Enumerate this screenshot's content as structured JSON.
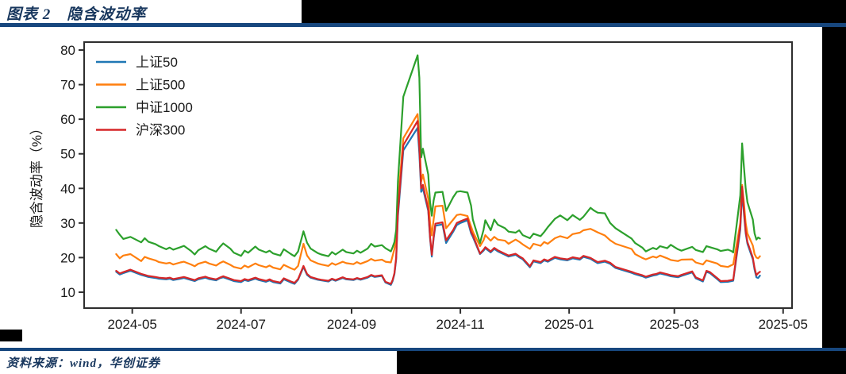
{
  "page": {
    "title": "图表 2　隐含波动率",
    "source_note": "资料来源：wind，华创证券",
    "accent_color": "#17365d",
    "rule_color": "#17477e"
  },
  "chart_data": {
    "type": "line",
    "title": "隐含波动率",
    "xlabel": "",
    "ylabel": "隐含波动率（%）",
    "ylim": [
      5.4,
      82.3
    ],
    "xlim": [
      "2024-04-04",
      "2025-05-06"
    ],
    "y_ticks": [
      10,
      20,
      30,
      40,
      50,
      60,
      70,
      80
    ],
    "x_ticks": [
      {
        "date": "2024-05-01",
        "label": "2024-05"
      },
      {
        "date": "2024-07-01",
        "label": "2024-07"
      },
      {
        "date": "2024-09-01",
        "label": "2024-09"
      },
      {
        "date": "2024-11-01",
        "label": "2024-11"
      },
      {
        "date": "2025-01-01",
        "label": "2025-01"
      },
      {
        "date": "2025-03-01",
        "label": "2025-03"
      },
      {
        "date": "2025-05-01",
        "label": "2025-05"
      }
    ],
    "grid": false,
    "legend_position": "upper left",
    "dates": [
      "2024-04-22",
      "2024-04-24",
      "2024-04-26",
      "2024-04-30",
      "2024-05-06",
      "2024-05-08",
      "2024-05-10",
      "2024-05-14",
      "2024-05-16",
      "2024-05-20",
      "2024-05-22",
      "2024-05-24",
      "2024-05-28",
      "2024-05-30",
      "2024-06-03",
      "2024-06-05",
      "2024-06-07",
      "2024-06-11",
      "2024-06-13",
      "2024-06-17",
      "2024-06-19",
      "2024-06-21",
      "2024-06-25",
      "2024-06-27",
      "2024-07-01",
      "2024-07-03",
      "2024-07-05",
      "2024-07-09",
      "2024-07-11",
      "2024-07-15",
      "2024-07-17",
      "2024-07-19",
      "2024-07-23",
      "2024-07-25",
      "2024-07-29",
      "2024-07-31",
      "2024-08-02",
      "2024-08-05",
      "2024-08-07",
      "2024-08-09",
      "2024-08-13",
      "2024-08-15",
      "2024-08-19",
      "2024-08-21",
      "2024-08-23",
      "2024-08-27",
      "2024-08-29",
      "2024-09-02",
      "2024-09-04",
      "2024-09-06",
      "2024-09-10",
      "2024-09-12",
      "2024-09-14",
      "2024-09-18",
      "2024-09-20",
      "2024-09-23",
      "2024-09-24",
      "2024-09-25",
      "2024-09-26",
      "2024-09-27",
      "2024-09-30",
      "2024-10-08",
      "2024-10-09",
      "2024-10-10",
      "2024-10-11",
      "2024-10-14",
      "2024-10-15",
      "2024-10-16",
      "2024-10-17",
      "2024-10-18",
      "2024-10-22",
      "2024-10-24",
      "2024-10-28",
      "2024-10-30",
      "2024-11-01",
      "2024-11-05",
      "2024-11-07",
      "2024-11-08",
      "2024-11-12",
      "2024-11-14",
      "2024-11-15",
      "2024-11-18",
      "2024-11-20",
      "2024-11-22",
      "2024-11-26",
      "2024-11-28",
      "2024-12-02",
      "2024-12-04",
      "2024-12-06",
      "2024-12-10",
      "2024-12-12",
      "2024-12-16",
      "2024-12-18",
      "2024-12-20",
      "2024-12-24",
      "2024-12-27",
      "2024-12-31",
      "2025-01-03",
      "2025-01-07",
      "2025-01-09",
      "2025-01-13",
      "2025-01-15",
      "2025-01-17",
      "2025-01-21",
      "2025-01-24",
      "2025-01-27",
      "2025-02-05",
      "2025-02-07",
      "2025-02-11",
      "2025-02-13",
      "2025-02-17",
      "2025-02-19",
      "2025-02-21",
      "2025-02-25",
      "2025-02-27",
      "2025-03-03",
      "2025-03-05",
      "2025-03-11",
      "2025-03-13",
      "2025-03-17",
      "2025-03-19",
      "2025-03-21",
      "2025-03-25",
      "2025-03-27",
      "2025-03-31",
      "2025-04-02",
      "2025-04-03",
      "2025-04-07",
      "2025-04-08",
      "2025-04-09",
      "2025-04-10",
      "2025-04-11",
      "2025-04-14",
      "2025-04-15",
      "2025-04-16",
      "2025-04-17",
      "2025-04-18"
    ],
    "series": [
      {
        "name": "上证50",
        "color": "#1f77b4",
        "values": [
          15.9,
          15.1,
          15.5,
          16.2,
          15.0,
          14.7,
          14.4,
          14.1,
          13.9,
          13.7,
          13.9,
          13.5,
          13.9,
          14.1,
          13.5,
          13.2,
          13.7,
          14.2,
          13.8,
          13.4,
          14.0,
          14.3,
          13.6,
          13.2,
          12.9,
          13.5,
          13.2,
          13.9,
          13.5,
          13.0,
          13.4,
          12.9,
          12.5,
          13.7,
          12.8,
          12.4,
          13.6,
          17.3,
          15.0,
          14.2,
          13.6,
          13.4,
          13.1,
          13.7,
          13.3,
          14.1,
          13.7,
          13.5,
          13.9,
          13.6,
          14.2,
          14.8,
          14.4,
          14.7,
          12.8,
          12.1,
          13.2,
          15.2,
          19.5,
          32.0,
          51.0,
          57.5,
          50.0,
          39.0,
          40.0,
          33.5,
          25.5,
          20.3,
          25.5,
          29.2,
          29.6,
          24.2,
          27.5,
          29.4,
          30.0,
          30.8,
          27.0,
          26.0,
          21.0,
          22.0,
          22.7,
          21.5,
          22.5,
          21.8,
          20.8,
          20.3,
          20.8,
          20.1,
          19.5,
          17.2,
          18.9,
          18.4,
          19.2,
          18.8,
          19.9,
          19.5,
          19.2,
          19.8,
          19.4,
          20.2,
          19.6,
          19.0,
          18.4,
          18.8,
          18.2,
          17.0,
          15.6,
          15.2,
          14.6,
          14.2,
          14.8,
          15.0,
          15.4,
          14.9,
          14.6,
          14.3,
          14.7,
          15.7,
          14.0,
          13.1,
          15.9,
          15.5,
          13.8,
          12.9,
          13.0,
          13.2,
          13.3,
          28.0,
          39.0,
          33.0,
          27.0,
          24.0,
          19.5,
          16.5,
          14.3,
          14.1,
          14.8
        ]
      },
      {
        "name": "上证500",
        "color": "#ff7f0e",
        "values": [
          21.0,
          19.8,
          20.6,
          21.0,
          19.0,
          20.2,
          19.8,
          19.2,
          18.7,
          18.3,
          18.5,
          18.0,
          18.6,
          18.8,
          18.0,
          17.5,
          18.2,
          18.8,
          18.3,
          17.7,
          18.4,
          18.9,
          17.9,
          17.3,
          16.8,
          17.7,
          17.2,
          18.3,
          17.8,
          17.2,
          17.7,
          17.1,
          16.6,
          17.9,
          16.9,
          16.5,
          17.6,
          24.0,
          20.6,
          19.2,
          18.3,
          18.0,
          17.6,
          18.4,
          17.9,
          18.8,
          18.4,
          18.1,
          18.7,
          18.2,
          19.0,
          19.6,
          19.1,
          19.4,
          18.8,
          18.6,
          20.5,
          22.5,
          26.0,
          36.0,
          54.5,
          61.5,
          55.0,
          42.0,
          44.0,
          37.0,
          30.0,
          26.4,
          31.0,
          34.8,
          35.0,
          28.5,
          31.0,
          32.3,
          32.5,
          32.0,
          29.0,
          27.5,
          23.3,
          25.0,
          26.5,
          24.9,
          26.0,
          25.2,
          24.9,
          24.0,
          25.2,
          24.6,
          23.8,
          22.5,
          24.0,
          23.4,
          24.5,
          24.0,
          25.6,
          26.2,
          25.6,
          26.8,
          27.2,
          27.9,
          28.3,
          27.8,
          27.3,
          26.4,
          25.0,
          24.0,
          22.5,
          21.0,
          19.9,
          19.5,
          20.3,
          20.0,
          20.6,
          19.8,
          19.3,
          19.0,
          19.4,
          19.5,
          18.6,
          18.0,
          19.2,
          18.9,
          18.3,
          17.6,
          17.3,
          17.8,
          18.0,
          30.0,
          41.0,
          36.0,
          30.0,
          27.0,
          23.5,
          21.0,
          20.0,
          19.8,
          20.4
        ]
      },
      {
        "name": "中证1000",
        "color": "#2ca02c",
        "values": [
          28.0,
          26.6,
          25.4,
          26.0,
          24.4,
          25.6,
          24.6,
          23.9,
          23.3,
          22.4,
          22.9,
          22.3,
          23.0,
          23.4,
          21.9,
          20.9,
          22.1,
          23.3,
          22.6,
          21.7,
          23.0,
          24.1,
          22.6,
          21.4,
          20.5,
          22.0,
          21.4,
          23.2,
          22.3,
          21.5,
          22.0,
          21.2,
          20.6,
          22.4,
          21.0,
          20.4,
          21.8,
          27.6,
          24.3,
          22.6,
          21.3,
          20.9,
          20.4,
          21.6,
          20.9,
          22.3,
          21.6,
          21.2,
          22.0,
          21.4,
          22.6,
          24.0,
          23.2,
          23.6,
          22.7,
          21.8,
          23.0,
          24.5,
          28.0,
          42.0,
          66.5,
          78.5,
          72.0,
          49.0,
          51.5,
          44.0,
          36.0,
          32.1,
          36.5,
          38.8,
          39.0,
          33.5,
          37.5,
          39.0,
          39.2,
          38.8,
          35.0,
          31.0,
          24.2,
          28.0,
          30.8,
          27.9,
          31.0,
          29.5,
          28.5,
          27.5,
          27.2,
          27.9,
          26.5,
          25.6,
          26.9,
          26.2,
          27.4,
          28.8,
          31.2,
          32.2,
          30.8,
          32.3,
          30.9,
          31.8,
          34.4,
          33.6,
          33.0,
          32.8,
          30.0,
          28.5,
          25.5,
          24.2,
          22.9,
          21.8,
          22.8,
          22.4,
          23.3,
          22.7,
          23.7,
          22.4,
          22.0,
          23.1,
          22.2,
          21.6,
          23.3,
          23.0,
          22.4,
          21.9,
          22.3,
          21.9,
          21.5,
          38.0,
          53.0,
          46.5,
          40.0,
          36.0,
          31.0,
          27.0,
          25.2,
          25.8,
          25.5
        ]
      },
      {
        "name": "沪深300",
        "color": "#d62728",
        "values": [
          16.2,
          15.4,
          15.8,
          16.5,
          15.3,
          15.0,
          14.7,
          14.4,
          14.2,
          14.0,
          14.2,
          13.8,
          14.2,
          14.4,
          13.8,
          13.5,
          14.0,
          14.5,
          14.1,
          13.7,
          14.2,
          14.6,
          13.9,
          13.5,
          13.2,
          13.8,
          13.5,
          14.2,
          13.8,
          13.3,
          13.7,
          13.2,
          12.8,
          14.0,
          13.1,
          12.7,
          13.8,
          17.6,
          15.3,
          14.4,
          13.8,
          13.6,
          13.3,
          13.9,
          13.5,
          14.3,
          13.9,
          13.7,
          14.1,
          13.8,
          14.4,
          15.0,
          14.6,
          14.9,
          13.0,
          12.4,
          13.5,
          15.5,
          20.0,
          33.0,
          52.5,
          59.5,
          52.0,
          40.0,
          41.0,
          34.0,
          26.0,
          20.8,
          26.0,
          29.8,
          30.2,
          25.0,
          28.0,
          30.0,
          30.5,
          31.3,
          27.5,
          26.5,
          21.2,
          22.3,
          23.0,
          21.8,
          22.8,
          22.1,
          21.1,
          20.6,
          21.1,
          20.4,
          19.8,
          17.5,
          19.2,
          18.7,
          19.5,
          19.1,
          20.2,
          19.8,
          19.5,
          20.1,
          19.7,
          20.5,
          19.9,
          19.3,
          18.7,
          19.1,
          18.5,
          17.3,
          15.9,
          15.5,
          14.9,
          14.5,
          15.1,
          15.3,
          15.7,
          15.2,
          14.9,
          14.6,
          15.0,
          16.0,
          14.3,
          13.4,
          16.2,
          15.8,
          14.1,
          13.2,
          13.3,
          13.5,
          13.6,
          29.0,
          40.5,
          34.0,
          27.5,
          24.5,
          20.0,
          17.0,
          14.9,
          15.5,
          15.9
        ]
      }
    ]
  }
}
